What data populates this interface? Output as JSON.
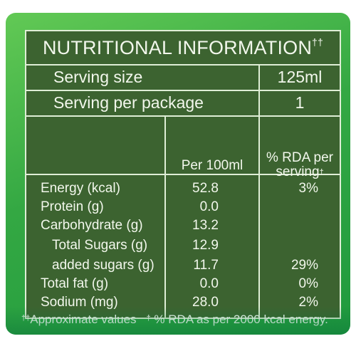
{
  "title": {
    "text": "NUTRITIONAL INFORMATION",
    "mark": "††"
  },
  "serving": {
    "size_label": "Serving size",
    "size_value": "125ml",
    "package_label": "Serving per package",
    "package_value": "1"
  },
  "header": {
    "per": "Per 100ml",
    "rda_line1": "% RDA per",
    "rda_line2": "serving",
    "rda_mark": "†"
  },
  "rows": [
    {
      "label": "Energy (kcal)",
      "value": "52.8",
      "rda": "3%"
    },
    {
      "label": "Protein (g)",
      "value": "0.0",
      "rda": ""
    },
    {
      "label": "Carbohydrate (g)",
      "value": "13.2",
      "rda": ""
    },
    {
      "label": "Total Sugars (g)",
      "value": "12.9",
      "rda": ""
    },
    {
      "label": "added sugars (g)",
      "value": "11.7",
      "rda": "29%"
    },
    {
      "label": "Total fat (g)",
      "value": "0.0",
      "rda": "0%"
    },
    {
      "label": "Sodium (mg)",
      "value": "28.0",
      "rda": "2%"
    }
  ],
  "footnote": {
    "mark1": "††",
    "text1": "Approximate values",
    "mark2": "†",
    "text2": "% RDA as per 2000 kcal energy."
  },
  "colors": {
    "panel": "#3c6330",
    "border": "#dfeed6",
    "card_green": "#34a843"
  }
}
